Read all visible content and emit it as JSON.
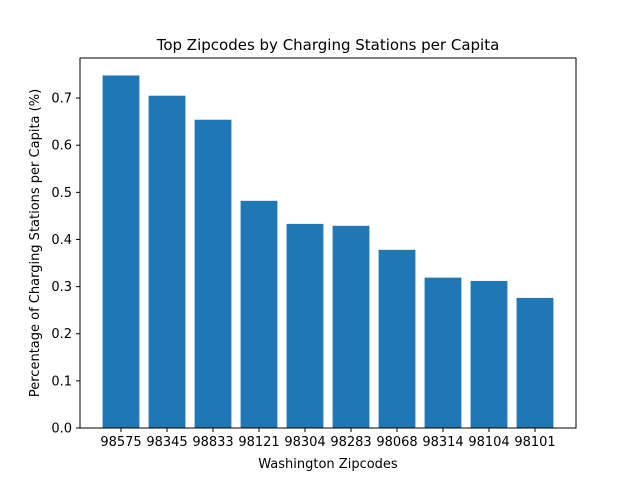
{
  "chart_data": {
    "type": "bar",
    "title": "Top Zipcodes by Charging Stations per Capita",
    "xlabel": "Washington Zipcodes",
    "ylabel": "Percentage of Charging Stations per Capita (%)",
    "categories": [
      "98575",
      "98345",
      "98833",
      "98121",
      "98304",
      "98283",
      "98068",
      "98314",
      "98104",
      "98101"
    ],
    "values": [
      0.748,
      0.705,
      0.654,
      0.482,
      0.433,
      0.429,
      0.378,
      0.319,
      0.312,
      0.276
    ],
    "ylim": [
      0,
      0.785
    ],
    "yticks": [
      "0.0",
      "0.1",
      "0.2",
      "0.3",
      "0.4",
      "0.5",
      "0.6",
      "0.7"
    ],
    "bar_color": "#1f77b4",
    "grid": false,
    "legend": "none"
  }
}
